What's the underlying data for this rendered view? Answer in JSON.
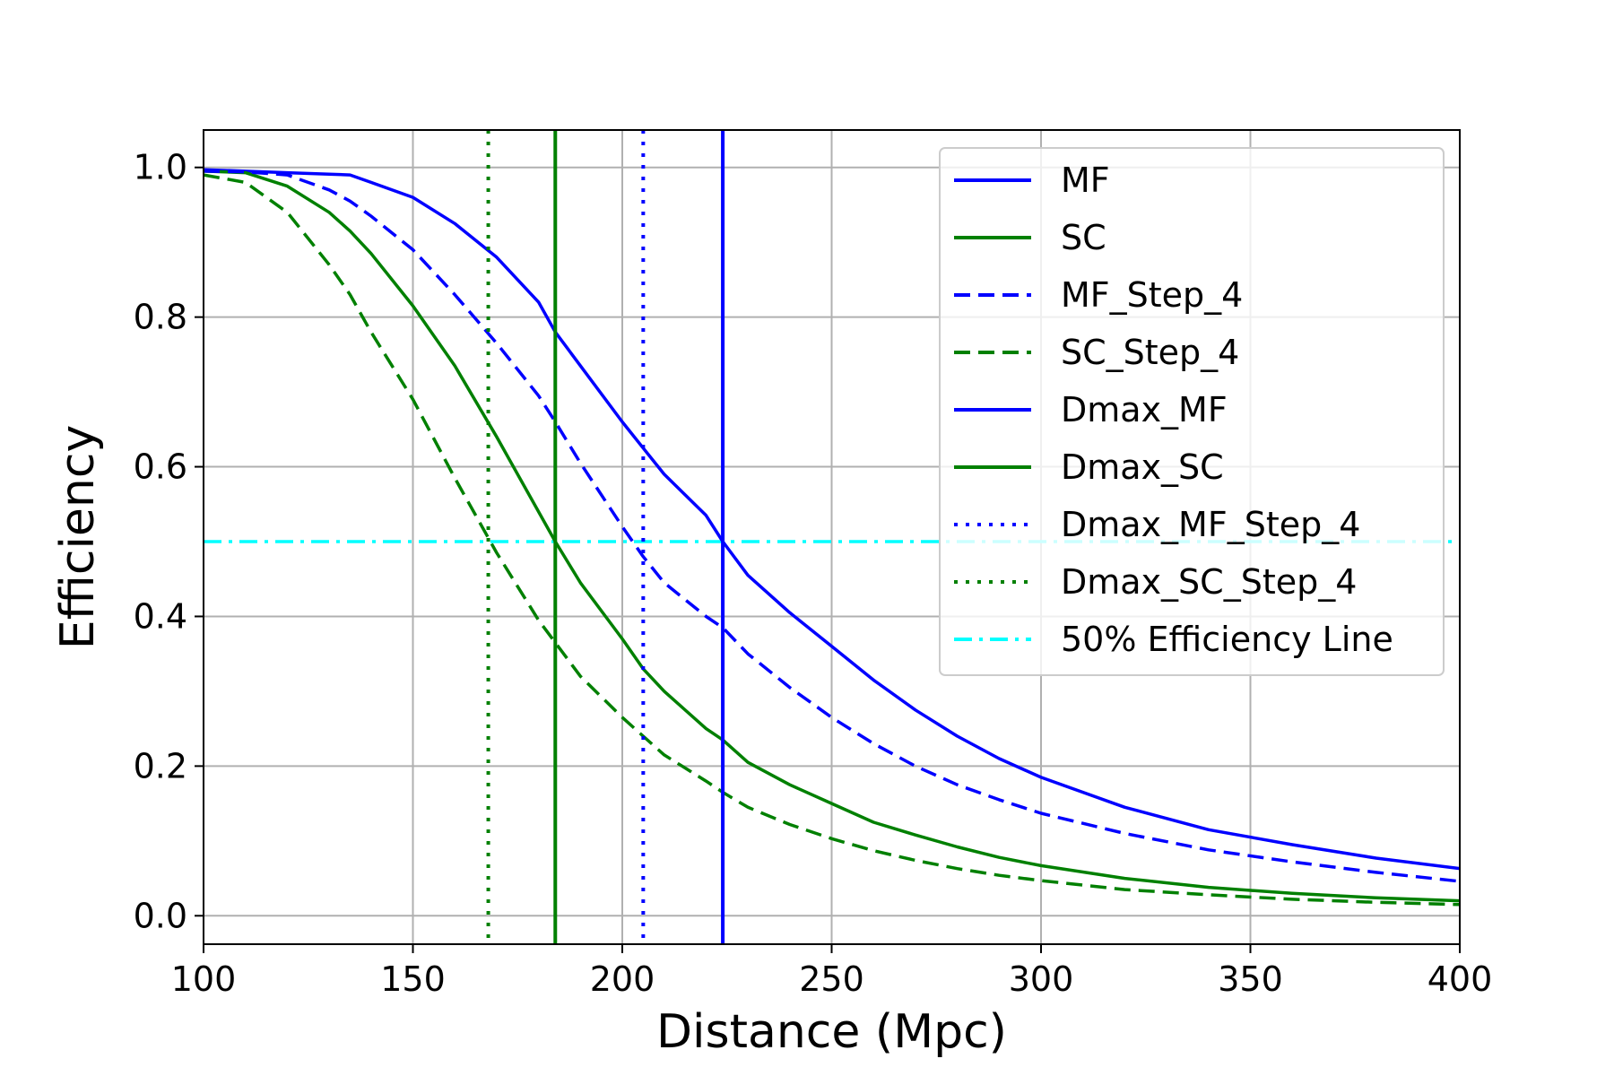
{
  "chart_data": {
    "type": "line",
    "title": "",
    "xlabel": "Distance (Mpc)",
    "ylabel": "Efficiency",
    "xlim": [
      100,
      400
    ],
    "ylim": [
      -0.038,
      1.05
    ],
    "x_ticks": [
      100,
      150,
      200,
      250,
      300,
      350,
      400
    ],
    "x_tick_labels": [
      "100",
      "150",
      "200",
      "250",
      "300",
      "350",
      "400"
    ],
    "y_ticks": [
      0.0,
      0.2,
      0.4,
      0.6,
      0.8,
      1.0
    ],
    "y_tick_labels": [
      "0.0",
      "0.2",
      "0.4",
      "0.6",
      "0.8",
      "1.0"
    ],
    "grid": true,
    "legend_position": "top-right",
    "x": [
      100,
      110,
      120,
      130,
      135,
      140,
      150,
      160,
      170,
      180,
      184,
      190,
      200,
      205,
      210,
      220,
      224,
      230,
      240,
      250,
      260,
      270,
      280,
      290,
      300,
      320,
      340,
      360,
      380,
      400
    ],
    "series": [
      {
        "name": "MF",
        "color": "#0000ff",
        "style": "solid",
        "values": [
          0.997,
          0.995,
          0.993,
          0.991,
          0.99,
          0.98,
          0.96,
          0.925,
          0.88,
          0.82,
          0.78,
          0.735,
          0.66,
          0.625,
          0.59,
          0.535,
          0.5,
          0.455,
          0.405,
          0.36,
          0.315,
          0.275,
          0.24,
          0.21,
          0.185,
          0.145,
          0.115,
          0.095,
          0.077,
          0.063
        ]
      },
      {
        "name": "SC",
        "color": "#008000",
        "style": "solid",
        "values": [
          0.995,
          0.993,
          0.975,
          0.94,
          0.915,
          0.885,
          0.815,
          0.735,
          0.64,
          0.54,
          0.5,
          0.445,
          0.37,
          0.33,
          0.3,
          0.25,
          0.235,
          0.205,
          0.175,
          0.15,
          0.125,
          0.108,
          0.092,
          0.078,
          0.067,
          0.05,
          0.038,
          0.03,
          0.024,
          0.02
        ]
      },
      {
        "name": "MF_Step_4",
        "color": "#0000ff",
        "style": "dashed",
        "values": [
          0.995,
          0.994,
          0.99,
          0.97,
          0.955,
          0.935,
          0.89,
          0.83,
          0.765,
          0.695,
          0.66,
          0.605,
          0.52,
          0.48,
          0.445,
          0.4,
          0.385,
          0.35,
          0.305,
          0.265,
          0.23,
          0.2,
          0.175,
          0.155,
          0.137,
          0.11,
          0.088,
          0.072,
          0.058,
          0.046
        ]
      },
      {
        "name": "SC_Step_4",
        "color": "#008000",
        "style": "dashed",
        "values": [
          0.99,
          0.98,
          0.94,
          0.87,
          0.83,
          0.78,
          0.69,
          0.585,
          0.485,
          0.395,
          0.365,
          0.32,
          0.265,
          0.24,
          0.215,
          0.18,
          0.165,
          0.145,
          0.122,
          0.103,
          0.087,
          0.074,
          0.063,
          0.054,
          0.047,
          0.035,
          0.028,
          0.022,
          0.018,
          0.015
        ]
      }
    ],
    "vertical_lines": [
      {
        "name": "Dmax_MF",
        "x": 224,
        "color": "#0000ff",
        "style": "solid"
      },
      {
        "name": "Dmax_SC",
        "x": 184,
        "color": "#008000",
        "style": "solid"
      },
      {
        "name": "Dmax_MF_Step_4",
        "x": 205,
        "color": "#0000ff",
        "style": "dotted"
      },
      {
        "name": "Dmax_SC_Step_4",
        "x": 168,
        "color": "#008000",
        "style": "dotted"
      }
    ],
    "horizontal_lines": [
      {
        "name": "50% Efficiency Line",
        "y": 0.5,
        "color": "#00ffff",
        "style": "dashdot"
      }
    ],
    "legend": [
      {
        "label": "MF",
        "color": "#0000ff",
        "style": "solid"
      },
      {
        "label": "SC",
        "color": "#008000",
        "style": "solid"
      },
      {
        "label": "MF_Step_4",
        "color": "#0000ff",
        "style": "dashed"
      },
      {
        "label": "SC_Step_4",
        "color": "#008000",
        "style": "dashed"
      },
      {
        "label": "Dmax_MF",
        "color": "#0000ff",
        "style": "solid"
      },
      {
        "label": "Dmax_SC",
        "color": "#008000",
        "style": "solid"
      },
      {
        "label": "Dmax_MF_Step_4",
        "color": "#0000ff",
        "style": "dotted"
      },
      {
        "label": "Dmax_SC_Step_4",
        "color": "#008000",
        "style": "dotted"
      },
      {
        "label": "50% Efficiency Line",
        "color": "#00ffff",
        "style": "dashdot"
      }
    ]
  }
}
